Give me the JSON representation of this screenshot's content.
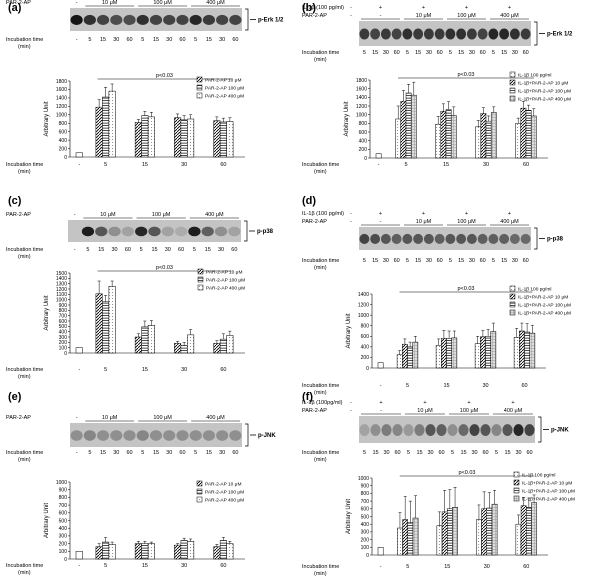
{
  "colors": {
    "ink": "#000000",
    "blot_bg": "#c4c4c4"
  },
  "chart_data": [
    {
      "type": "bar",
      "panel_label": "(a)",
      "band_label": "p-Erk 1/2",
      "treatment_rows": [
        {
          "label": "PAR-2-AP",
          "marks": [
            "-",
            "10 μM",
            "100 μM",
            "400 μM"
          ]
        }
      ],
      "incubation_label": [
        "Incubation time",
        "(min)"
      ],
      "lane_times": [
        "-",
        "5",
        "15",
        "30",
        "60",
        "5",
        "15",
        "30",
        "60",
        "5",
        "15",
        "30",
        "60"
      ],
      "group_labels": [
        "-",
        "5",
        "15",
        "30",
        "60"
      ],
      "ylabel": "Arbitrary Unit",
      "yticks": [
        "0",
        "200",
        "400",
        "600",
        "800",
        "1000",
        "1200",
        "1400",
        "1600",
        "1800"
      ],
      "ylim": [
        0,
        1800
      ],
      "significance": "p<0.03",
      "legend": [
        "PAR-2-AP 10 μM",
        "PAR-2-AP 100 μM",
        "PAR-2-AP 400 μM"
      ],
      "control": {
        "value": 100,
        "err": 20
      },
      "series": [
        {
          "name": "PAR-2-AP 10 μM",
          "values": [
            1180,
            820,
            930,
            860,
            800
          ],
          "errors": [
            180,
            70,
            90,
            90,
            110
          ]
        },
        {
          "name": "PAR-2-AP 100 μM",
          "values": [
            1420,
            980,
            880,
            830,
            780
          ],
          "errors": [
            230,
            100,
            100,
            90,
            80
          ]
        },
        {
          "name": "PAR-2-AP 400 μM",
          "values": [
            1560,
            950,
            900,
            840,
            820
          ],
          "errors": [
            170,
            110,
            100,
            90,
            90
          ]
        }
      ],
      "blot_intensity": [
        0.95,
        0.8,
        0.7,
        0.65,
        0.65,
        0.8,
        0.7,
        0.7,
        0.7,
        0.85,
        0.75,
        0.7,
        0.7
      ]
    },
    {
      "type": "bar",
      "panel_label": "(b)",
      "band_label": "p-Erk 1/2",
      "treatment_rows": [
        {
          "label": "IL-1β (100 pg/ml)",
          "marks": [
            "-",
            "+",
            "+",
            "+",
            "+"
          ]
        },
        {
          "label": "PAR-2-AP",
          "marks": [
            "-",
            "-",
            "10 μM",
            "100 μM",
            "400 μM"
          ]
        }
      ],
      "incubation_label": [
        "Incubation time",
        "(min)"
      ],
      "lane_times": [
        "5",
        "15",
        "30",
        "60",
        "5",
        "15",
        "30",
        "60",
        "5",
        "15",
        "30",
        "60",
        "5",
        "15",
        "30",
        "60"
      ],
      "group_labels": [
        "-",
        "5",
        "15",
        "30",
        "60"
      ],
      "ylabel": "Arbitrary Unit",
      "yticks": [
        "0",
        "200",
        "400",
        "600",
        "800",
        "1000",
        "1200",
        "1400",
        "1600",
        "1800"
      ],
      "ylim": [
        0,
        1800
      ],
      "significance": "p<0.03",
      "legend": [
        "IL-1β 100 pg/ml",
        "IL-1β+PAR-2-AP 10 μM",
        "IL-1β+PAR-2-AP 100 μM",
        "IL-1β+PAR-2-AP 400 μM"
      ],
      "control": {
        "value": 100,
        "err": 20
      },
      "series": [
        {
          "name": "IL-1β 100 pg/ml",
          "values": [
            900,
            780,
            720,
            800,
            720
          ],
          "errors": [
            300,
            180,
            150,
            120,
            130
          ]
        },
        {
          "name": "IL-1β+PAR-2-AP 10 μM",
          "values": [
            1310,
            1080,
            1030,
            1150,
            900
          ],
          "errors": [
            250,
            170,
            130,
            160,
            180
          ]
        },
        {
          "name": "IL-1β+PAR-2-AP 100 μM",
          "values": [
            1500,
            1120,
            850,
            1100,
            950
          ],
          "errors": [
            200,
            180,
            120,
            120,
            160
          ]
        },
        {
          "name": "IL-1β+PAR-2-AP 400 μM",
          "values": [
            1450,
            980,
            1050,
            970,
            770
          ],
          "errors": [
            300,
            200,
            130,
            170,
            170
          ]
        }
      ],
      "blot_intensity": [
        0.75,
        0.7,
        0.75,
        0.7,
        0.8,
        0.75,
        0.75,
        0.75,
        0.8,
        0.8,
        0.75,
        0.7,
        0.85,
        0.85,
        0.8,
        0.75
      ]
    },
    {
      "type": "bar",
      "panel_label": "(c)",
      "band_label": "p-p38",
      "treatment_rows": [
        {
          "label": "PAR-2-AP",
          "marks": [
            "-",
            "10 μM",
            "100 μM",
            "400 μM"
          ]
        }
      ],
      "incubation_label": [
        "Incubation time",
        "(min)"
      ],
      "lane_times": [
        "-",
        "5",
        "15",
        "30",
        "60",
        "5",
        "15",
        "30",
        "60",
        "5",
        "15",
        "30",
        "60"
      ],
      "group_labels": [
        "-",
        "5",
        "15",
        "30",
        "60"
      ],
      "ylabel": "Arbitrary Unit",
      "yticks": [
        "0",
        "100",
        "200",
        "300",
        "400",
        "500",
        "600",
        "700",
        "800",
        "900",
        "1000",
        "1100",
        "1200",
        "1300",
        "1400",
        "1500"
      ],
      "ylim": [
        0,
        1500
      ],
      "significance": "p<0.03",
      "legend": [
        "PAR-2-AP 10 μM",
        "PAR-2-AP 100 μM",
        "PAR-2-AP 400 μM"
      ],
      "control": {
        "value": 100,
        "err": 15
      },
      "series": [
        {
          "name": "PAR-2-AP 10 μM",
          "values": [
            1110,
            300,
            180,
            180,
            200
          ],
          "errors": [
            240,
            60,
            40,
            50,
            60
          ]
        },
        {
          "name": "PAR-2-AP 100 μM",
          "values": [
            960,
            490,
            140,
            260,
            260
          ],
          "errors": [
            120,
            110,
            60,
            100,
            70
          ]
        },
        {
          "name": "PAR-2-AP 400 μM",
          "values": [
            1250,
            520,
            340,
            330,
            200
          ],
          "errors": [
            100,
            90,
            100,
            80,
            50
          ]
        }
      ],
      "blot_intensity": [
        0.0,
        0.9,
        0.6,
        0.3,
        0.2,
        0.85,
        0.6,
        0.2,
        0.15,
        0.9,
        0.55,
        0.3,
        0.2
      ]
    },
    {
      "type": "bar",
      "panel_label": "(d)",
      "band_label": "p-p38",
      "treatment_rows": [
        {
          "label": "IL-1β (100 pg/ml)",
          "marks": [
            "-",
            "+",
            "+",
            "+",
            "+"
          ]
        },
        {
          "label": "PAR-2-AP",
          "marks": [
            "-",
            "-",
            "10 μM",
            "100 μM",
            "400 μM"
          ]
        }
      ],
      "incubation_label": [
        "Incubation time",
        "(min)"
      ],
      "lane_times": [
        "5",
        "15",
        "30",
        "60",
        "5",
        "15",
        "30",
        "60",
        "5",
        "15",
        "30",
        "60",
        "5",
        "15",
        "30",
        "60"
      ],
      "group_labels": [
        "-",
        "5",
        "15",
        "30",
        "60"
      ],
      "ylabel": "Arbitrary Unit",
      "yticks": [
        "0",
        "200",
        "400",
        "600",
        "800",
        "1000",
        "1200",
        "1400"
      ],
      "ylim": [
        0,
        1400
      ],
      "significance": "p<0.03",
      "legend": [
        "IL-1β 100 pg/ml",
        "IL-1β+PAR-2-AP 10 μM",
        "IL-1β+PAR-2-AP 100 μM",
        "IL-1β+PAR-2-AP 400 μM"
      ],
      "control": {
        "value": 100,
        "err": 20
      },
      "series": [
        {
          "name": "IL-1β 100 pg/ml",
          "values": [
            250,
            430,
            460,
            580,
            460
          ],
          "errors": [
            80,
            120,
            140,
            170,
            150
          ]
        },
        {
          "name": "IL-1β+PAR-2-AP 10 μM",
          "values": [
            450,
            560,
            590,
            700,
            660
          ],
          "errors": [
            100,
            150,
            120,
            150,
            140
          ]
        },
        {
          "name": "IL-1β+PAR-2-AP 100 μM",
          "values": [
            400,
            560,
            600,
            680,
            580
          ],
          "errors": [
            90,
            140,
            130,
            160,
            130
          ]
        },
        {
          "name": "IL-1β+PAR-2-AP 400 μM",
          "values": [
            490,
            570,
            690,
            660,
            510
          ],
          "errors": [
            110,
            130,
            160,
            150,
            120
          ]
        }
      ],
      "blot_intensity": [
        0.7,
        0.65,
        0.6,
        0.55,
        0.6,
        0.6,
        0.6,
        0.55,
        0.6,
        0.6,
        0.6,
        0.55,
        0.55,
        0.55,
        0.5,
        0.5
      ]
    },
    {
      "type": "bar",
      "panel_label": "(e)",
      "band_label": "p-JNK",
      "treatment_rows": [
        {
          "label": "PAR-2-AP",
          "marks": [
            "-",
            "10 μM",
            "100 μM",
            "400 μM"
          ]
        }
      ],
      "incubation_label": [
        "Incubation time",
        "(min)"
      ],
      "lane_times": [
        "-",
        "5",
        "15",
        "30",
        "60",
        "5",
        "15",
        "30",
        "60",
        "5",
        "15",
        "30",
        "60"
      ],
      "group_labels": [
        "-",
        "5",
        "15",
        "30",
        "60"
      ],
      "ylabel": "Arbitrary Unit",
      "yticks": [
        "0",
        "100",
        "200",
        "300",
        "400",
        "500",
        "600",
        "700",
        "800",
        "900",
        "1000"
      ],
      "ylim": [
        0,
        1000
      ],
      "significance": "",
      "legend": [
        "PAR-2-AP 10 μM",
        "PAR-2-AP 100 μM",
        "PAR-2-AP 400 μM"
      ],
      "control": {
        "value": 100,
        "err": 15
      },
      "series": [
        {
          "name": "PAR-2-AP 10 μM",
          "values": [
            160,
            200,
            180,
            160,
            170
          ],
          "errors": [
            40,
            30,
            20,
            30,
            30
          ]
        },
        {
          "name": "PAR-2-AP 100 μM",
          "values": [
            220,
            200,
            240,
            240,
            210
          ],
          "errors": [
            60,
            30,
            30,
            40,
            30
          ]
        },
        {
          "name": "PAR-2-AP 400 μM",
          "values": [
            190,
            200,
            230,
            200,
            300
          ],
          "errors": [
            30,
            20,
            30,
            30,
            40
          ]
        }
      ],
      "blot_intensity": [
        0.3,
        0.35,
        0.3,
        0.3,
        0.3,
        0.35,
        0.3,
        0.3,
        0.3,
        0.3,
        0.3,
        0.3,
        0.3
      ]
    },
    {
      "type": "bar",
      "panel_label": "(f)",
      "band_label": "p-JNK",
      "treatment_rows": [
        {
          "label": "IL-1β (100pg/ml)",
          "marks": [
            "-",
            "+",
            "+",
            "+",
            "+"
          ]
        },
        {
          "label": "PAR-2-AP",
          "marks": [
            "-",
            "-",
            "10 μM",
            "100 μM",
            "400 μM"
          ]
        }
      ],
      "incubation_label": [
        "Incubation time",
        "(min)"
      ],
      "lane_times": [
        "5",
        "15",
        "30",
        "60",
        "5",
        "15",
        "30",
        "60",
        "5",
        "15",
        "30",
        "60",
        "5",
        "15",
        "30",
        "60"
      ],
      "group_labels": [
        "-",
        "5",
        "15",
        "30",
        "60"
      ],
      "ylabel": "Arbitrary Unit",
      "yticks": [
        "0",
        "100",
        "200",
        "300",
        "400",
        "500",
        "600",
        "700",
        "800",
        "900",
        "1000"
      ],
      "ylim": [
        0,
        1000
      ],
      "significance": "p<0.03",
      "legend": [
        "IL-1β 100 pg/ml",
        "IL-1β+PAR-2-AP 10 μM",
        "IL-1β+PAR-2-AP 100 μM",
        "IL-1β+PAR-2-AP 400 μM"
      ],
      "control": {
        "value": 100,
        "err": 20
      },
      "series": [
        {
          "name": "IL-1β 100 pg/ml",
          "values": [
            350,
            380,
            460,
            400,
            380
          ],
          "errors": [
            200,
            180,
            190,
            120,
            110
          ]
        },
        {
          "name": "IL-1β+PAR-2-AP 10 μM",
          "values": [
            460,
            560,
            600,
            640,
            420
          ],
          "errors": [
            300,
            280,
            220,
            110,
            150
          ]
        },
        {
          "name": "IL-1β+PAR-2-AP 100 μM",
          "values": [
            420,
            600,
            610,
            620,
            440
          ],
          "errors": [
            280,
            250,
            200,
            120,
            120
          ]
        },
        {
          "name": "IL-1β+PAR-2-AP 400 μM",
          "values": [
            480,
            620,
            660,
            680,
            460
          ],
          "errors": [
            290,
            260,
            180,
            100,
            110
          ]
        }
      ],
      "blot_intensity": [
        0.2,
        0.3,
        0.4,
        0.35,
        0.25,
        0.4,
        0.6,
        0.55,
        0.3,
        0.5,
        0.7,
        0.6,
        0.35,
        0.6,
        0.85,
        0.7
      ]
    }
  ]
}
